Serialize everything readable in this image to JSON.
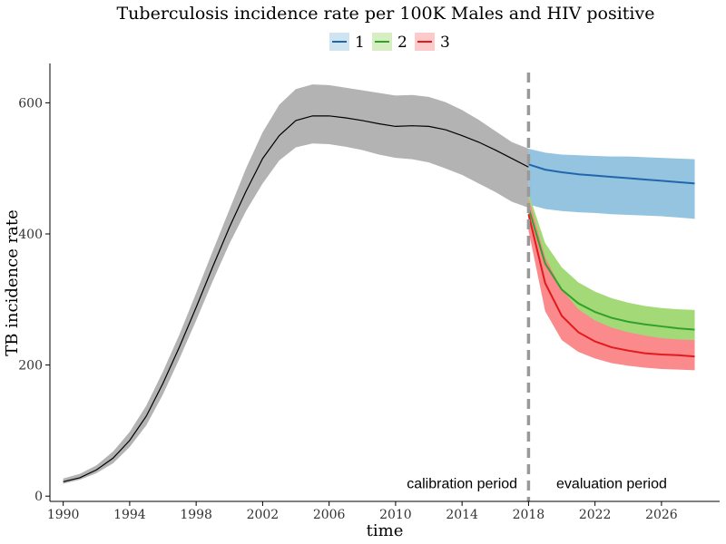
{
  "chart_data": {
    "type": "line",
    "title": "Tuberculosis incidence rate per 100K Males and HIV positive",
    "xlabel": "time",
    "ylabel": "TB incidence rate",
    "xlim": [
      1989.2,
      2029.5
    ],
    "ylim": [
      -8,
      660
    ],
    "x_ticks": [
      1990,
      1994,
      1998,
      2002,
      2006,
      2010,
      2014,
      2018,
      2022,
      2026
    ],
    "y_ticks": [
      0,
      200,
      400,
      600
    ],
    "grid": false,
    "legend_position": "top",
    "vline": {
      "x": 2018,
      "color": "#999999"
    },
    "annotations": [
      {
        "text": "calibration period",
        "x": 2014,
        "y": 8
      },
      {
        "text": "evaluation period",
        "x": 2023,
        "y": 8
      }
    ],
    "calibration": {
      "color": "#000000",
      "band_color": "#b3b3b3",
      "x": [
        1990,
        1991,
        1992,
        1993,
        1994,
        1995,
        1996,
        1997,
        1998,
        1999,
        2000,
        2001,
        2002,
        2003,
        2004,
        2005,
        2006,
        2007,
        2008,
        2009,
        2010,
        2011,
        2012,
        2013,
        2014,
        2015,
        2016,
        2017,
        2018
      ],
      "y": [
        22,
        28,
        40,
        58,
        85,
        122,
        172,
        228,
        288,
        350,
        410,
        465,
        515,
        550,
        573,
        580,
        580,
        577,
        573,
        568,
        564,
        565,
        564,
        559,
        550,
        540,
        528,
        515,
        502
      ],
      "lower": [
        19,
        25,
        35,
        50,
        75,
        108,
        155,
        210,
        268,
        328,
        385,
        435,
        477,
        512,
        532,
        538,
        537,
        533,
        528,
        521,
        516,
        514,
        509,
        500,
        490,
        477,
        464,
        449,
        440
      ],
      "upper": [
        27,
        34,
        47,
        68,
        98,
        138,
        190,
        247,
        310,
        374,
        437,
        500,
        555,
        597,
        621,
        628,
        627,
        623,
        619,
        615,
        611,
        612,
        609,
        601,
        589,
        574,
        557,
        540,
        530
      ]
    },
    "series": [
      {
        "name": "1",
        "color": "#2166ac",
        "band_color": "#94c4df",
        "x": [
          2018,
          2019,
          2020,
          2021,
          2022,
          2023,
          2024,
          2025,
          2026,
          2027,
          2028
        ],
        "y": [
          506,
          498,
          494,
          491,
          489,
          487,
          485,
          483,
          481,
          479,
          477
        ],
        "lower": [
          445,
          438,
          435,
          433,
          432,
          430,
          429,
          428,
          427,
          425,
          423
        ],
        "upper": [
          530,
          524,
          521,
          520,
          519,
          518,
          518,
          517,
          516,
          515,
          514
        ]
      },
      {
        "name": "2",
        "color": "#33a02c",
        "band_color": "#a3d977",
        "x": [
          2018,
          2019,
          2020,
          2021,
          2022,
          2023,
          2024,
          2025,
          2026,
          2027,
          2028
        ],
        "y": [
          440,
          355,
          315,
          294,
          281,
          272,
          266,
          262,
          259,
          256,
          254
        ],
        "lower": [
          418,
          325,
          290,
          272,
          260,
          252,
          247,
          243,
          240,
          238,
          236
        ],
        "upper": [
          462,
          386,
          349,
          326,
          312,
          302,
          295,
          290,
          287,
          285,
          284
        ]
      },
      {
        "name": "3",
        "color": "#e31a1c",
        "band_color": "#fb8a8c",
        "x": [
          2018,
          2019,
          2020,
          2021,
          2022,
          2023,
          2024,
          2025,
          2026,
          2027,
          2028
        ],
        "y": [
          430,
          325,
          275,
          250,
          236,
          227,
          222,
          218,
          216,
          215,
          213
        ],
        "lower": [
          405,
          282,
          238,
          220,
          210,
          203,
          199,
          196,
          194,
          193,
          192
        ],
        "upper": [
          455,
          365,
          315,
          285,
          268,
          257,
          250,
          245,
          241,
          239,
          238
        ]
      }
    ]
  }
}
